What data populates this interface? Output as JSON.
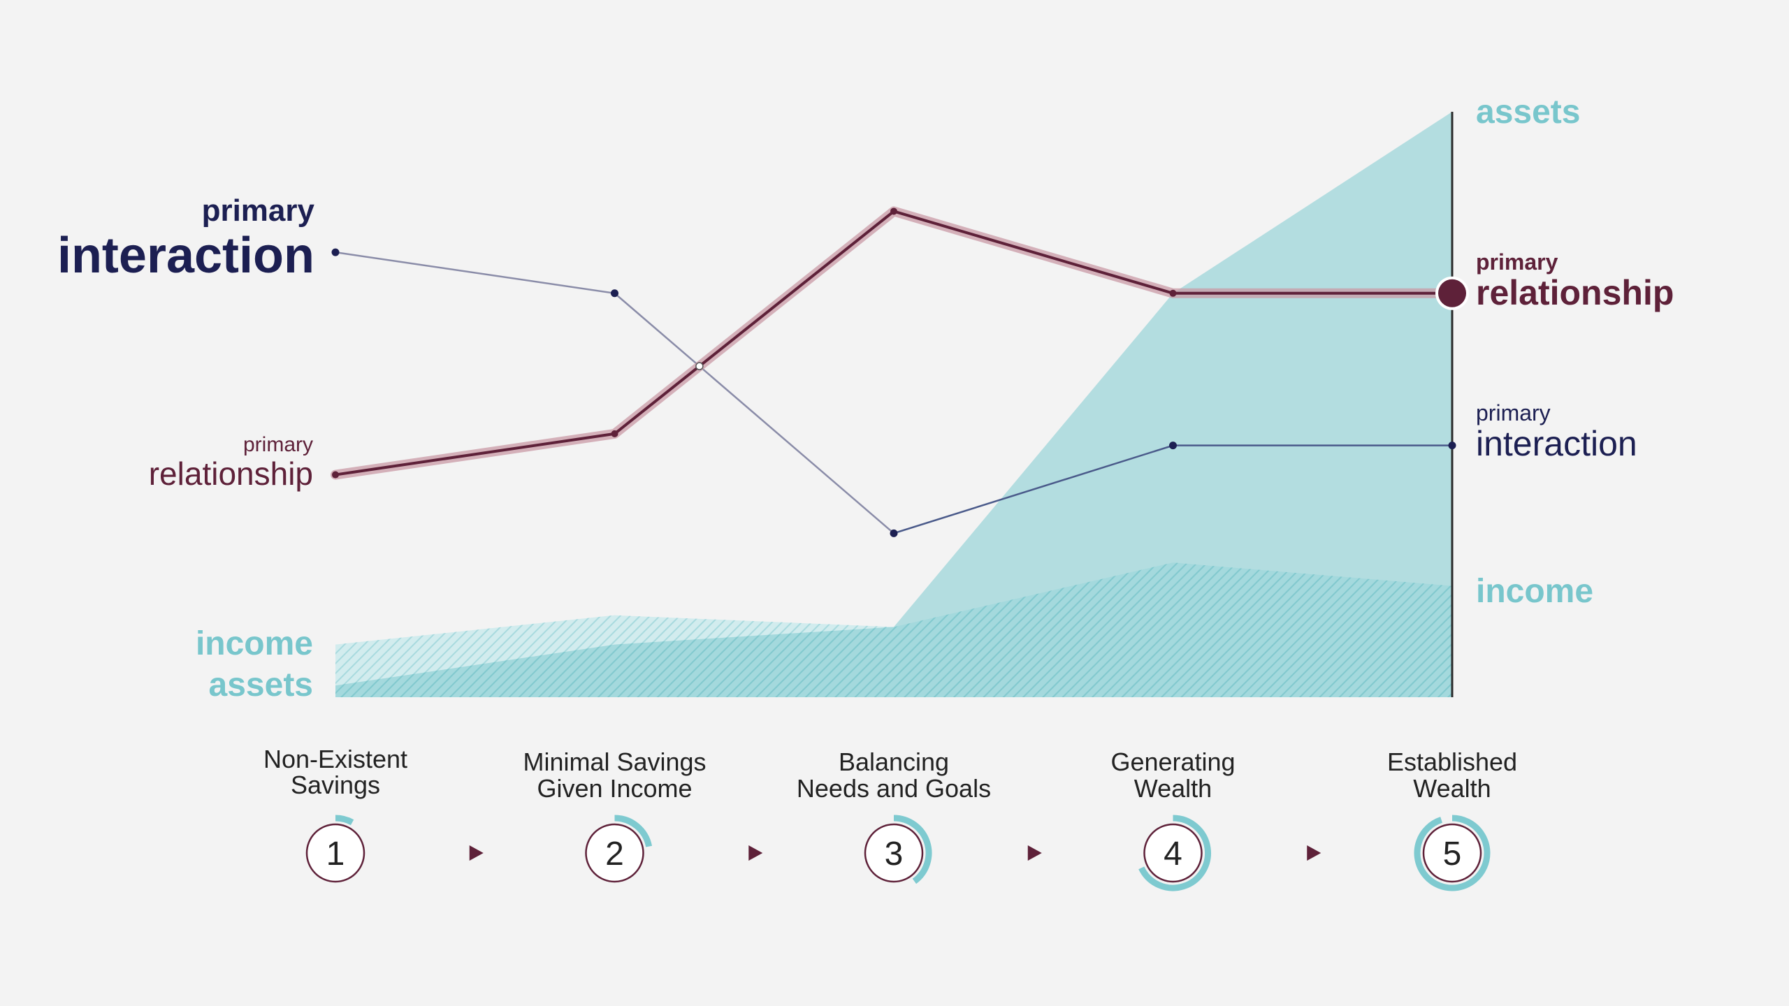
{
  "chart_data": {
    "type": "line",
    "title": "",
    "xlabel": "",
    "ylabel": "",
    "grid": false,
    "categories": [
      {
        "number": "1",
        "line1": "Non-Existent",
        "line2": "Savings"
      },
      {
        "number": "2",
        "line1": "Minimal Savings",
        "line2": "Given Income"
      },
      {
        "number": "3",
        "line1": "Balancing",
        "line2": "Needs and Goals"
      },
      {
        "number": "4",
        "line1": "Generating",
        "line2": "Wealth"
      },
      {
        "number": "5",
        "line1": "Established",
        "line2": "Wealth"
      }
    ],
    "ylim": [
      0,
      100
    ],
    "series": [
      {
        "key": "interaction",
        "kind": "line",
        "values": [
          76,
          69,
          28,
          43,
          43
        ],
        "color": "#1c1f52"
      },
      {
        "key": "relationship",
        "kind": "line",
        "values": [
          38,
          45,
          83,
          69,
          69
        ],
        "color": "#5e2139"
      },
      {
        "key": "assets",
        "kind": "area",
        "values": [
          2,
          9,
          12,
          69,
          100
        ],
        "color": "#7ecad0"
      },
      {
        "key": "income",
        "kind": "area",
        "values": [
          9,
          14,
          12,
          23,
          19
        ],
        "color": "#7ecad0"
      }
    ],
    "stage_progress": [
      0.08,
      0.22,
      0.4,
      0.68,
      0.95
    ],
    "left_labels": {
      "interaction": {
        "small": "primary",
        "big": "interaction"
      },
      "relationship": {
        "small": "primary",
        "big": "relationship"
      },
      "income": "income",
      "assets": "assets"
    },
    "right_labels": {
      "assets": "assets",
      "relationship": {
        "small": "primary",
        "big": "relationship"
      },
      "interaction": {
        "small": "primary",
        "big": "interaction"
      },
      "income": "income"
    }
  },
  "colors": {
    "navy": "#1c1f52",
    "maroon": "#5e2139",
    "teal": "#7ecad0",
    "teal_text": "#78c6cc",
    "connector_line": "#8a8ca8",
    "background": "#f3f3f3"
  }
}
